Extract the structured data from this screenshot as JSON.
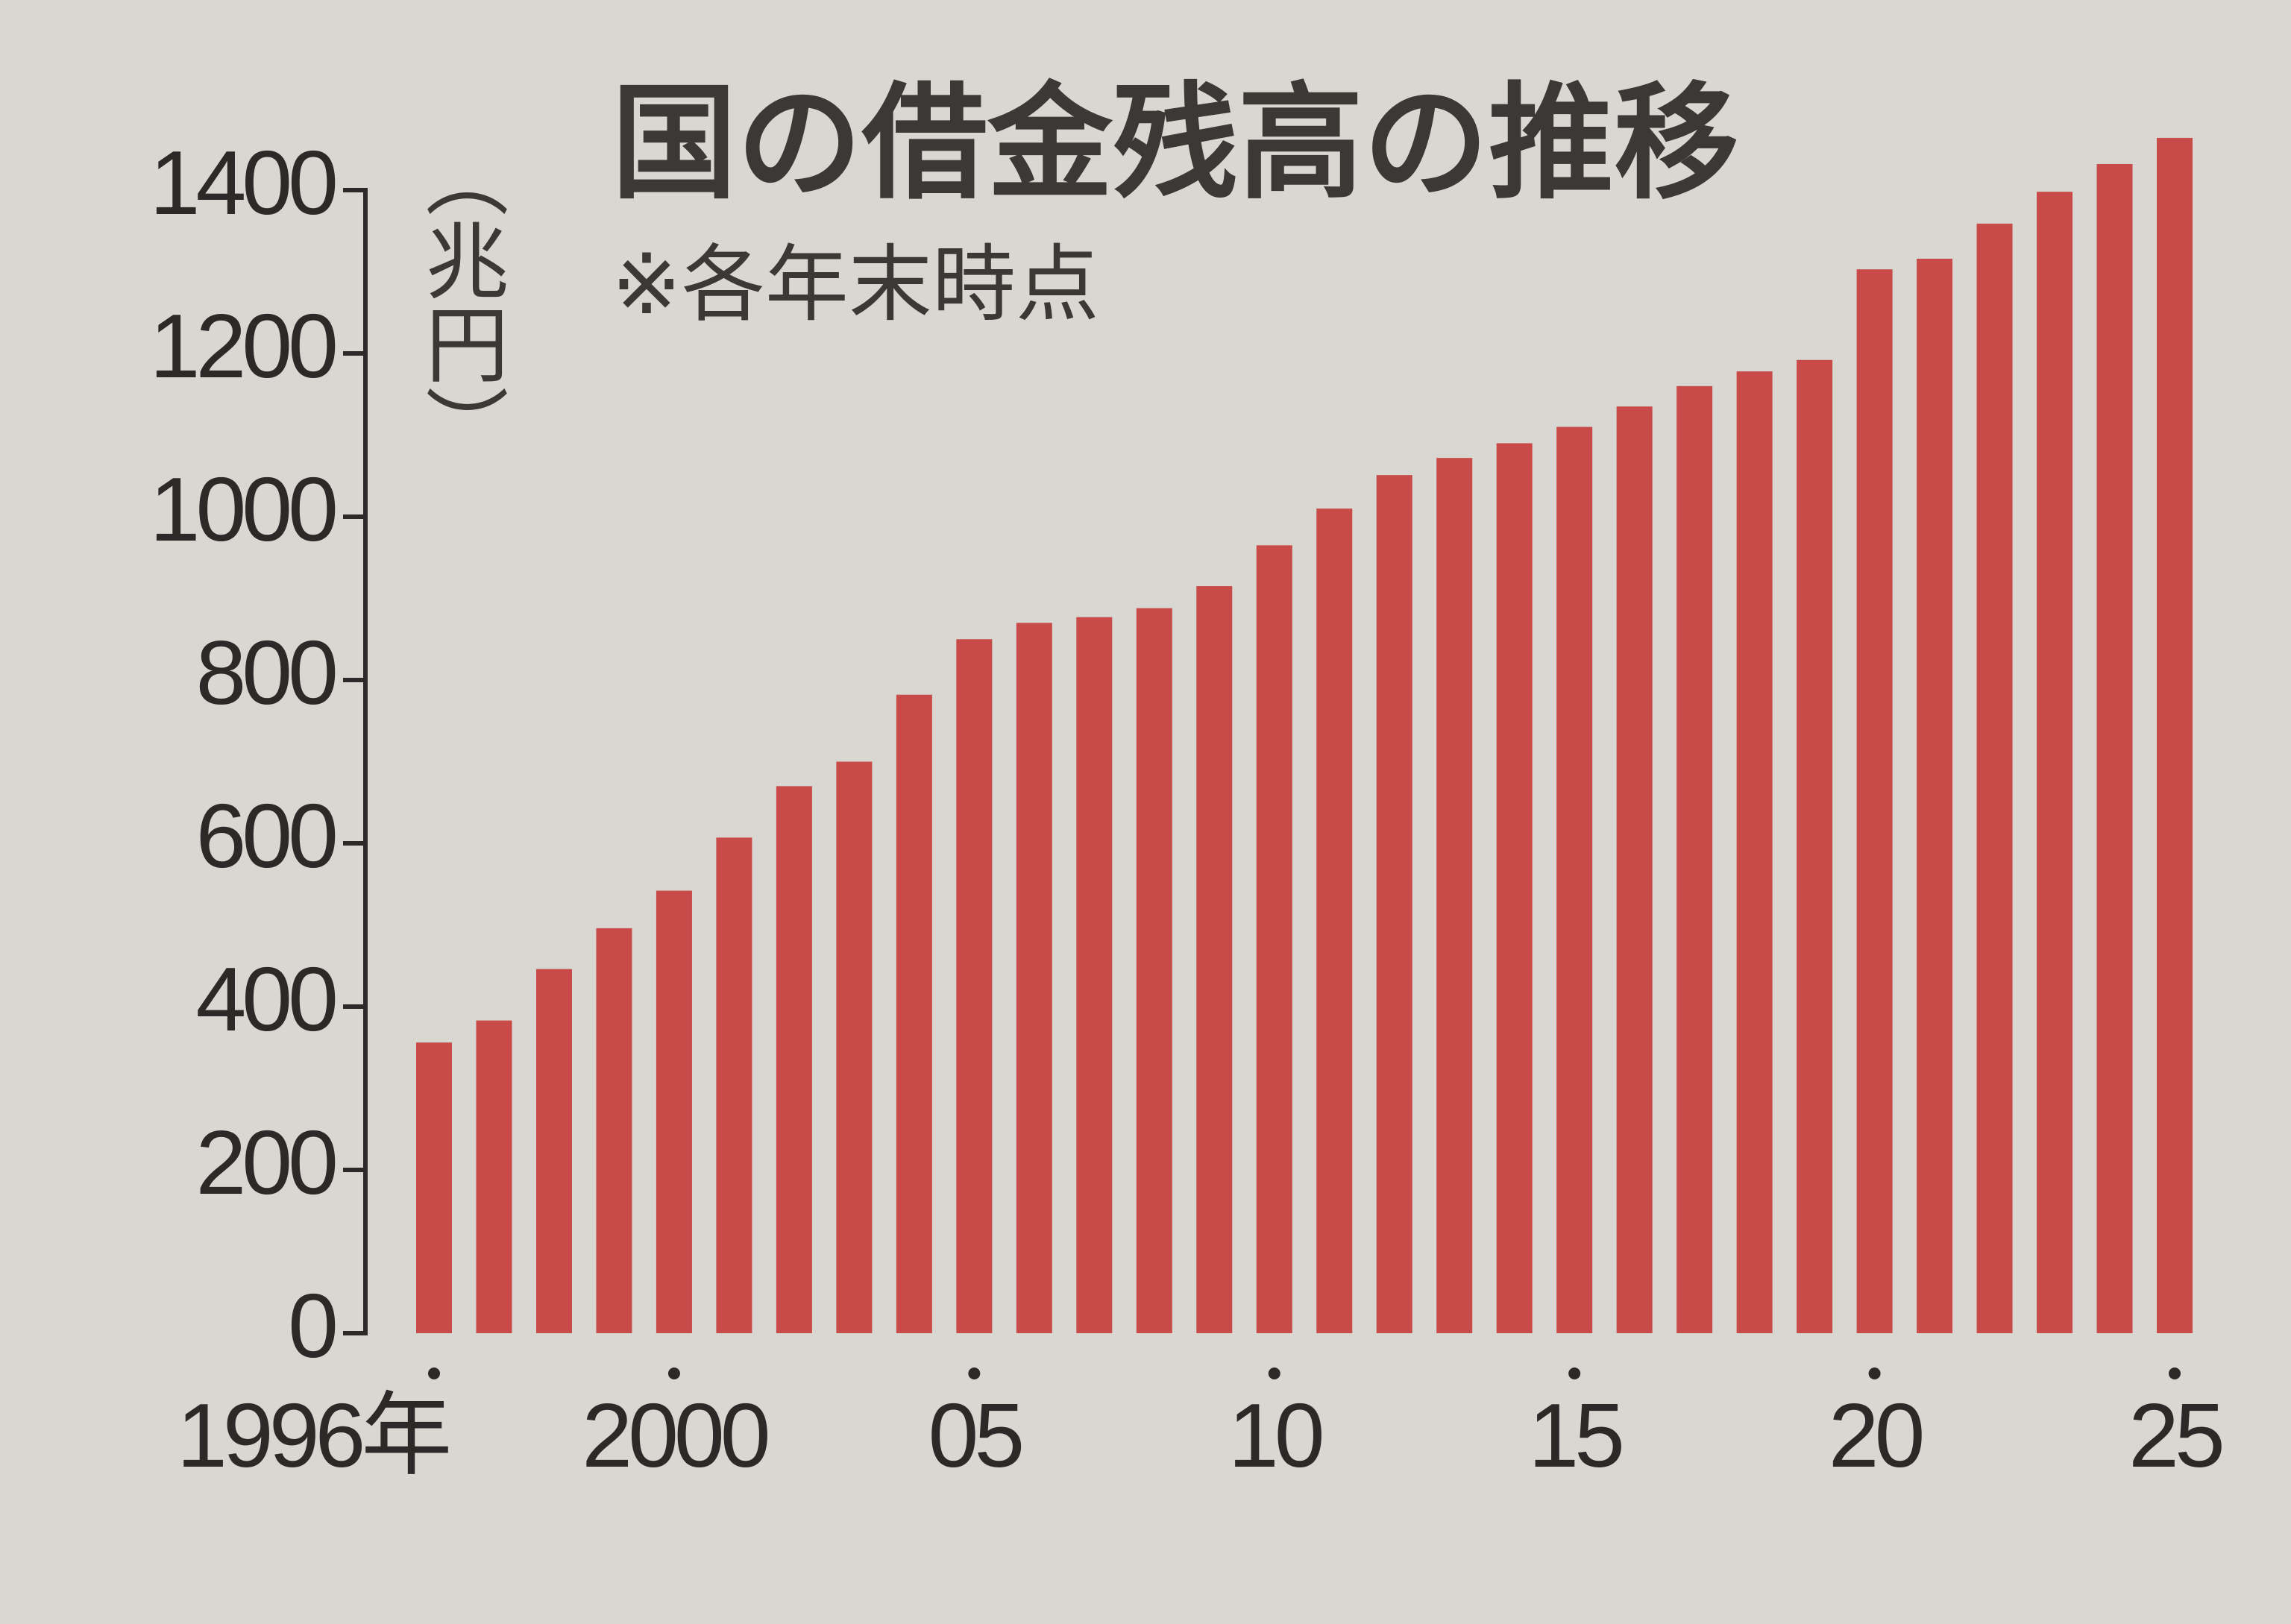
{
  "chart_data": {
    "type": "bar",
    "title": "国の借金残高の推移",
    "subtitle": "※各年末時点",
    "y_label": "（兆円）",
    "categories": [
      "1996年",
      null,
      null,
      null,
      "2000",
      null,
      null,
      null,
      null,
      "05",
      null,
      null,
      null,
      null,
      "10",
      null,
      null,
      null,
      null,
      "15",
      null,
      null,
      null,
      null,
      "20",
      null,
      null,
      null,
      null,
      "25"
    ],
    "values": [
      356,
      383,
      446,
      496,
      542,
      607,
      670,
      700,
      782,
      850,
      870,
      877,
      888,
      915,
      965,
      1010,
      1051,
      1072,
      1090,
      1110,
      1135,
      1160,
      1178,
      1192,
      1303,
      1316,
      1359,
      1398,
      1432,
      1464
    ],
    "color": "#c94b49",
    "ylim": [
      0,
      1400
    ],
    "yticks": [
      0,
      200,
      400,
      600,
      800,
      1000,
      1200,
      1400
    ],
    "grid": false
  }
}
